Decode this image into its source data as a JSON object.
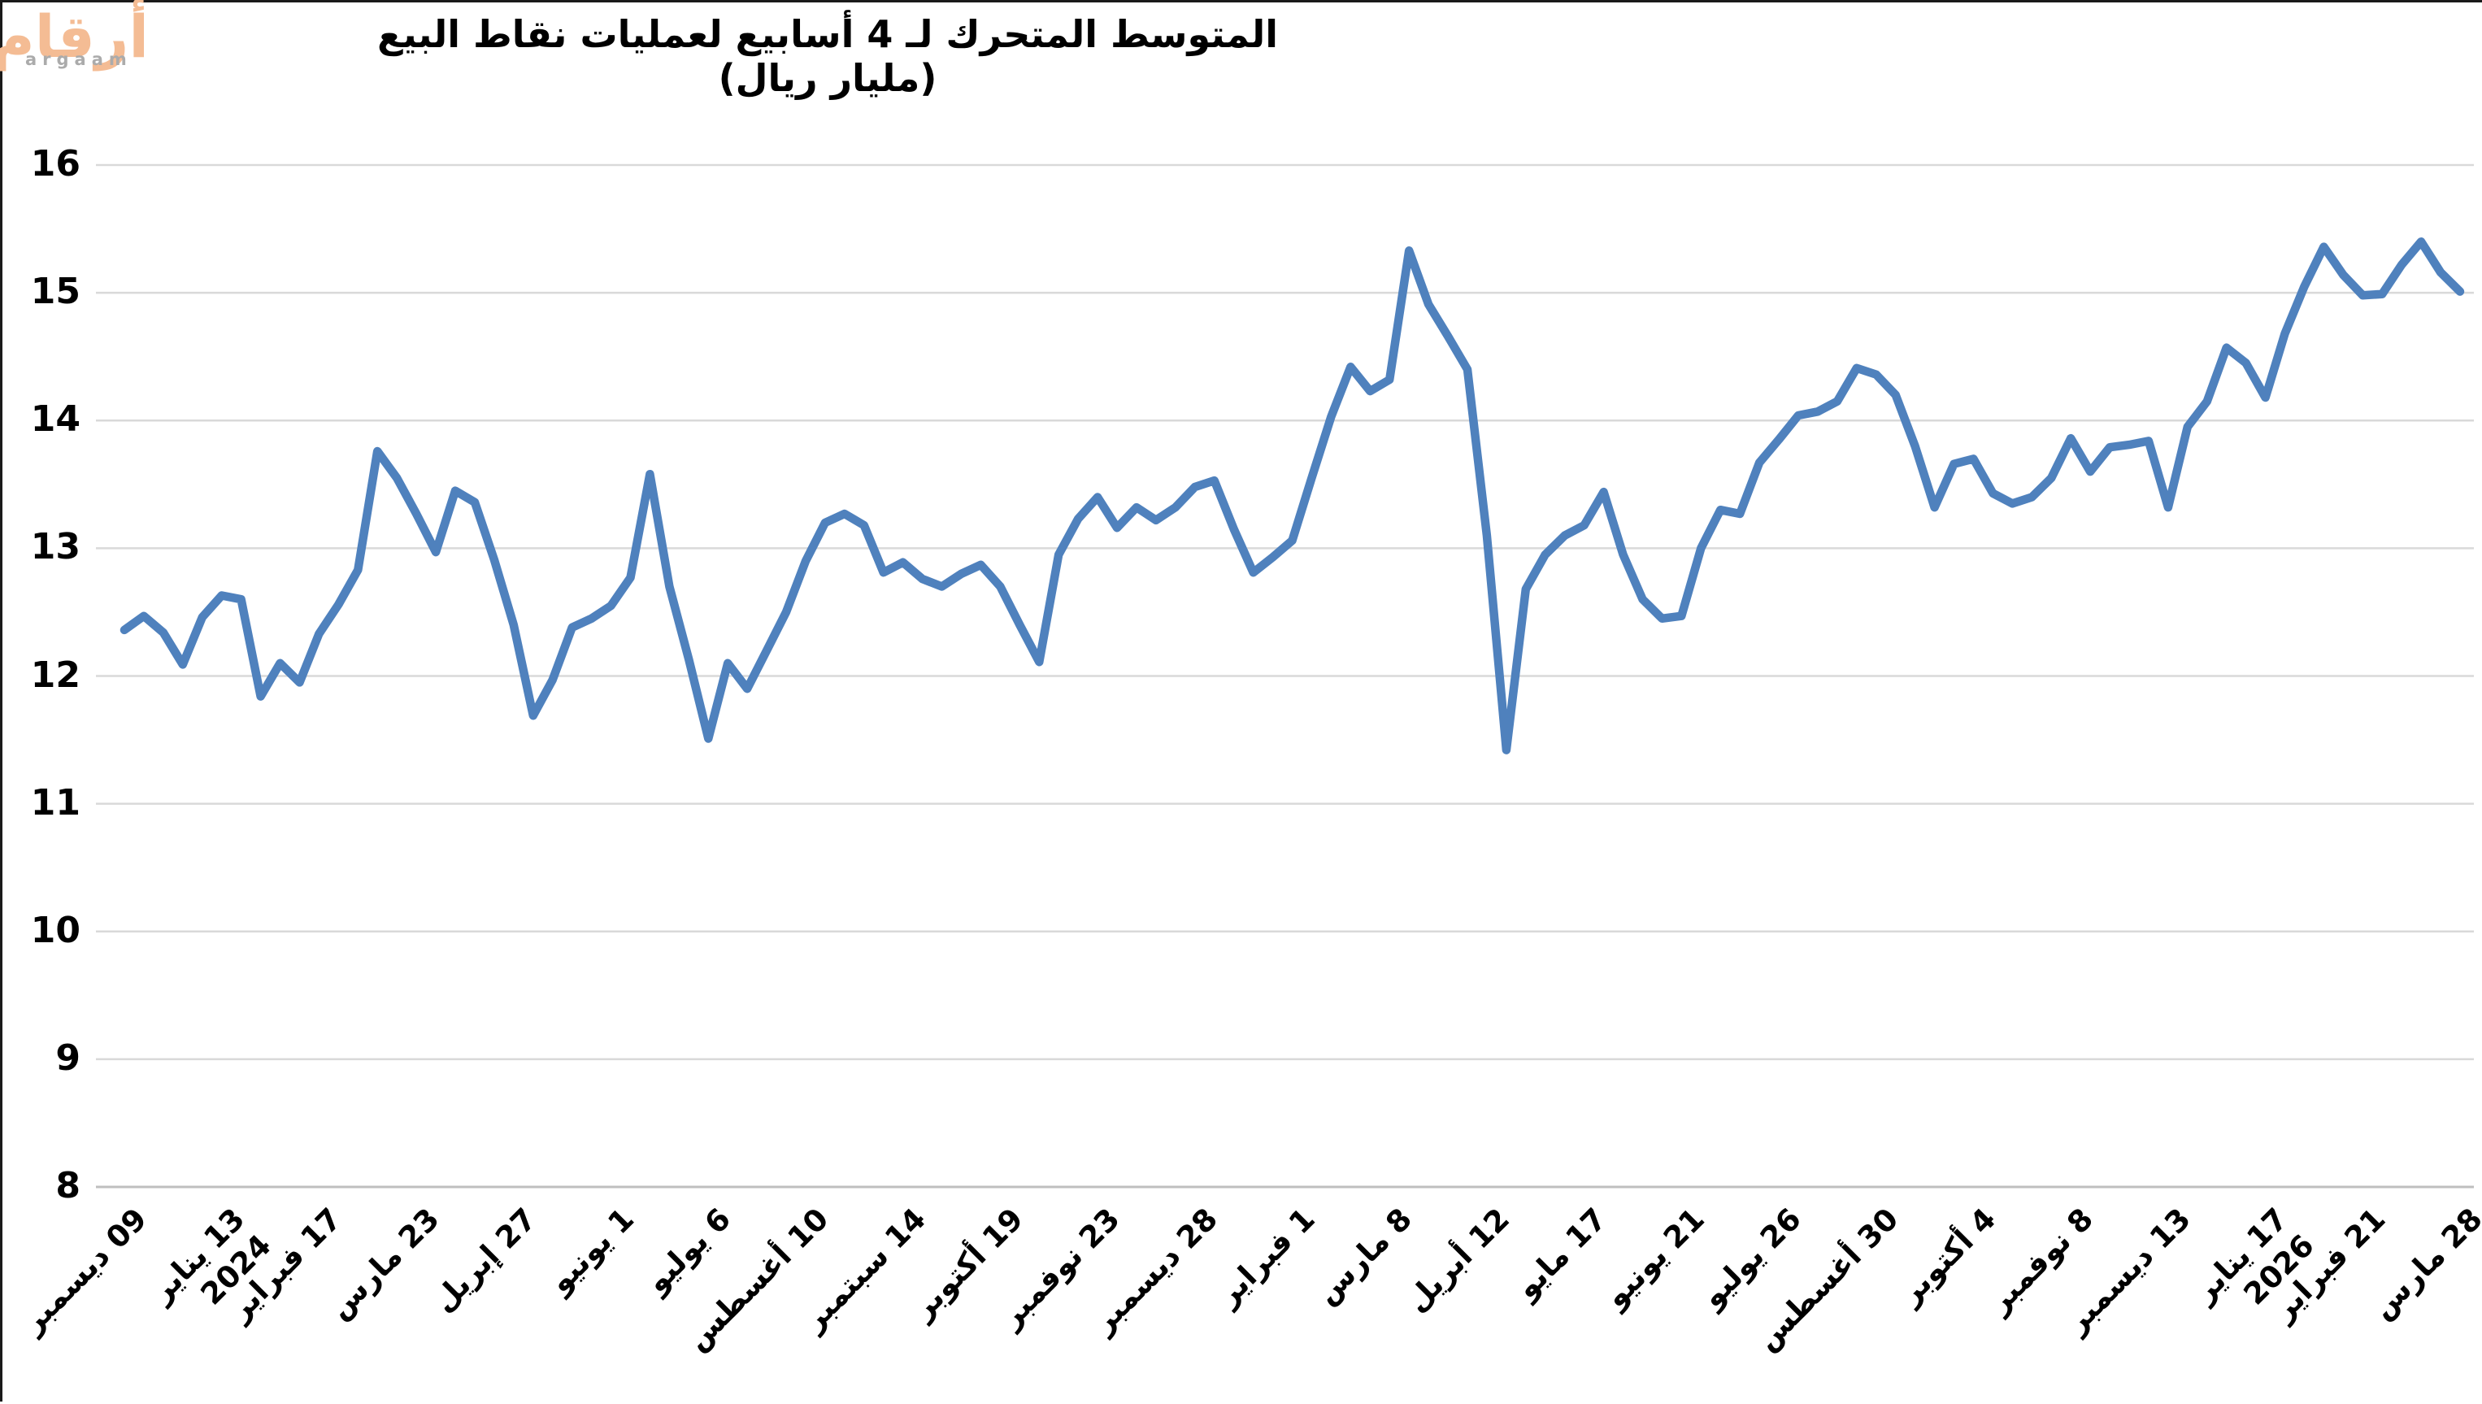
{
  "logo": {
    "arabic": "أرقام",
    "latin": "argaam",
    "accent_color": "#F4BC94",
    "latin_color": "#ABABAB"
  },
  "title": "المتوسط المتحرك لـ 4 أسابيع لعمليات نقاط البيع (مليار ريال)",
  "chart_data": {
    "type": "line",
    "title": "المتوسط المتحرك لـ 4 أسابيع لعمليات نقاط البيع (مليار ريال)",
    "ylabel": "",
    "xlabel": "",
    "ylim": [
      8,
      16
    ],
    "ytick_labels": [
      "8",
      "9",
      "10",
      "11",
      "12",
      "13",
      "14",
      "15",
      "16"
    ],
    "grid": "horizontal",
    "legend": "none",
    "line_color": "#4F81BD",
    "grid_color": "#D9D9D9",
    "axis_color": "#BFBFBF",
    "frequency": "weekly",
    "x_tick_labels": [
      {
        "point": 0,
        "label": "09 ديسمبر"
      },
      {
        "point": 5,
        "label": "13 يناير",
        "year": "2024"
      },
      {
        "point": 10,
        "label": "17 فبراير"
      },
      {
        "point": 15,
        "label": "23 مارس"
      },
      {
        "point": 20,
        "label": "27 إبريل"
      },
      {
        "point": 25,
        "label": "1 يونيو"
      },
      {
        "point": 30,
        "label": "6 يوليو"
      },
      {
        "point": 35,
        "label": "10 أغسطس"
      },
      {
        "point": 40,
        "label": "14 سبتمبر"
      },
      {
        "point": 45,
        "label": "19 أكتوبر"
      },
      {
        "point": 50,
        "label": "23 نوفمبر"
      },
      {
        "point": 55,
        "label": "28 ديسمبر"
      },
      {
        "point": 60,
        "label": "1 فبراير"
      },
      {
        "point": 65,
        "label": "8 مارس"
      },
      {
        "point": 70,
        "label": "12 أبريل"
      },
      {
        "point": 75,
        "label": "17 مايو"
      },
      {
        "point": 80,
        "label": "21 يونيو"
      },
      {
        "point": 85,
        "label": "26 يوليو"
      },
      {
        "point": 90,
        "label": "30 أغسطس"
      },
      {
        "point": 95,
        "label": "4 أكتوبر"
      },
      {
        "point": 100,
        "label": "8 نوفمبر"
      },
      {
        "point": 105,
        "label": "13 ديسمبر"
      },
      {
        "point": 110,
        "label": "17 يناير",
        "year": "2026"
      },
      {
        "point": 115,
        "label": "21 فبراير"
      },
      {
        "point": 120,
        "label": "28 مارس"
      }
    ],
    "series": [
      {
        "name": "المتوسط المتحرك لـ 4 أسابيع",
        "values": [
          12.36,
          12.47,
          12.34,
          12.09,
          12.46,
          12.63,
          12.6,
          11.84,
          12.1,
          11.95,
          12.33,
          12.56,
          12.83,
          13.76,
          13.55,
          13.27,
          12.97,
          13.45,
          13.36,
          12.91,
          12.4,
          11.69,
          11.97,
          12.38,
          12.45,
          12.55,
          12.77,
          13.58,
          12.7,
          12.13,
          11.51,
          12.1,
          11.9,
          12.2,
          12.5,
          12.9,
          13.2,
          13.27,
          13.18,
          12.81,
          12.89,
          12.76,
          12.7,
          12.8,
          12.87,
          12.7,
          12.4,
          12.11,
          12.95,
          13.23,
          13.4,
          13.16,
          13.32,
          13.22,
          13.32,
          13.48,
          13.53,
          13.15,
          12.81,
          12.93,
          13.06,
          13.55,
          14.03,
          14.42,
          14.23,
          14.32,
          15.33,
          14.91,
          14.66,
          14.4,
          13.1,
          11.42,
          12.68,
          12.95,
          13.1,
          13.18,
          13.44,
          12.95,
          12.6,
          12.45,
          12.47,
          13.0,
          13.3,
          13.27,
          13.67,
          13.85,
          14.04,
          14.07,
          14.15,
          14.41,
          14.36,
          14.2,
          13.8,
          13.32,
          13.66,
          13.7,
          13.43,
          13.35,
          13.4,
          13.55,
          13.86,
          13.6,
          13.79,
          13.81,
          13.84,
          13.32,
          13.95,
          14.15,
          14.57,
          14.45,
          14.18,
          14.68,
          15.05,
          15.36,
          15.14,
          14.98,
          14.99,
          15.22,
          15.4,
          15.16,
          15.01
        ]
      }
    ]
  }
}
